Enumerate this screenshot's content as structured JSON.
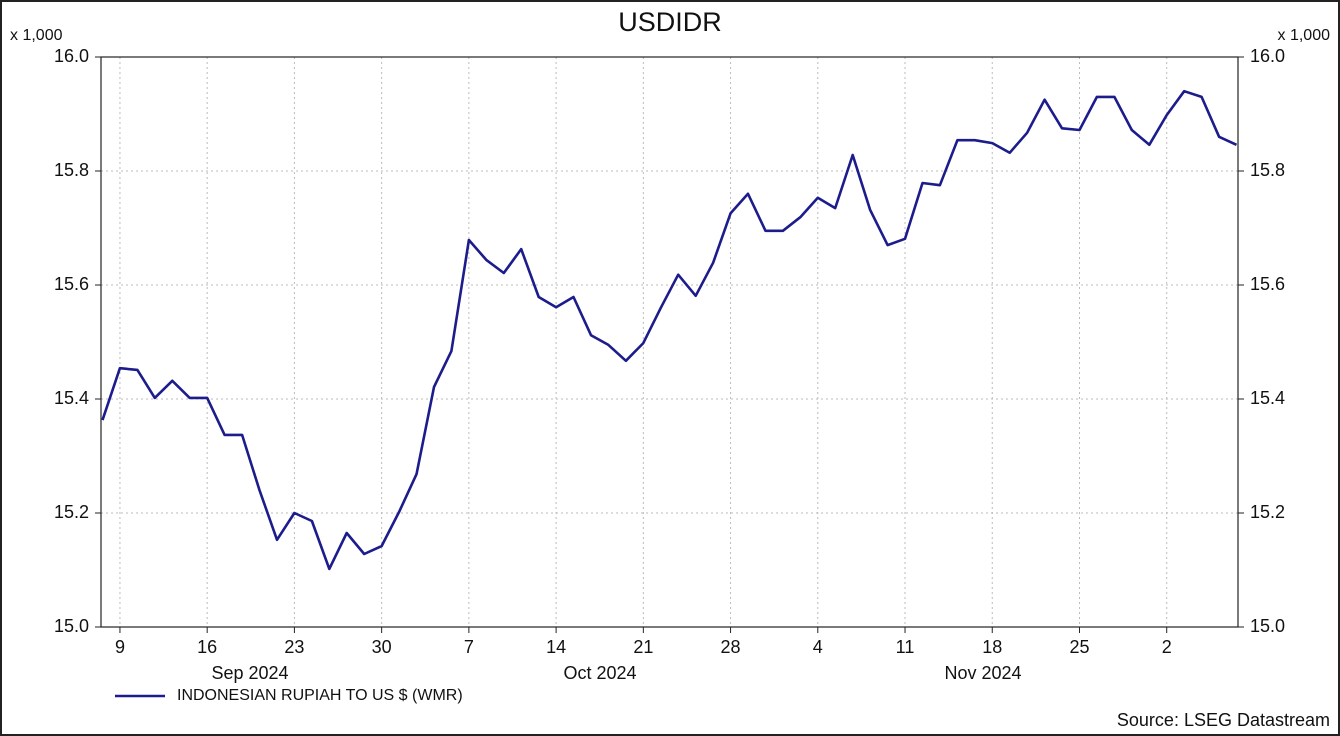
{
  "chart_data": {
    "type": "line",
    "title": "USDIDR",
    "y_unit": "x 1,000",
    "categories": [
      null,
      "9",
      null,
      null,
      null,
      null,
      "16",
      null,
      null,
      null,
      null,
      "23",
      null,
      null,
      null,
      null,
      "30",
      null,
      null,
      null,
      null,
      "7",
      null,
      null,
      null,
      null,
      "14",
      null,
      null,
      null,
      null,
      "21",
      null,
      null,
      null,
      null,
      "28",
      null,
      null,
      null,
      null,
      "4",
      null,
      null,
      null,
      null,
      "11",
      null,
      null,
      null,
      null,
      "18",
      null,
      null,
      null,
      null,
      "25",
      null,
      null,
      null,
      null,
      "2",
      null,
      null,
      null,
      null
    ],
    "x_group_labels": [
      "Sep 2024",
      "Oct 2024",
      "Nov 2024"
    ],
    "series": [
      {
        "name": "INDONESIAN RUPIAH TO US $ (WMR)",
        "color": "#1c1c8c",
        "values": [
          15.363,
          15.454,
          15.451,
          15.402,
          15.432,
          15.402,
          15.402,
          15.337,
          15.337,
          15.24,
          15.153,
          15.2,
          15.186,
          15.102,
          15.165,
          15.128,
          15.142,
          15.202,
          15.268,
          15.421,
          15.484,
          15.679,
          15.644,
          15.621,
          15.663,
          15.579,
          15.561,
          15.579,
          15.512,
          15.495,
          15.467,
          15.498,
          15.56,
          15.618,
          15.581,
          15.639,
          15.726,
          15.76,
          15.695,
          15.695,
          15.719,
          15.753,
          15.735,
          15.828,
          15.732,
          15.67,
          15.681,
          15.779,
          15.775,
          15.854,
          15.854,
          15.849,
          15.832,
          15.867,
          15.925,
          15.875,
          15.872,
          15.93,
          15.93,
          15.872,
          15.846,
          15.898,
          15.94,
          15.93,
          15.86,
          15.846
        ]
      }
    ],
    "ylim": [
      15.0,
      16.0
    ],
    "yticks": [
      {
        "value": 15.0,
        "label": "15.0"
      },
      15.2,
      15.4,
      15.6,
      15.8,
      {
        "value": 16.0,
        "label": "16.0"
      }
    ],
    "grid": true,
    "source": "Source: LSEG Datastream"
  }
}
